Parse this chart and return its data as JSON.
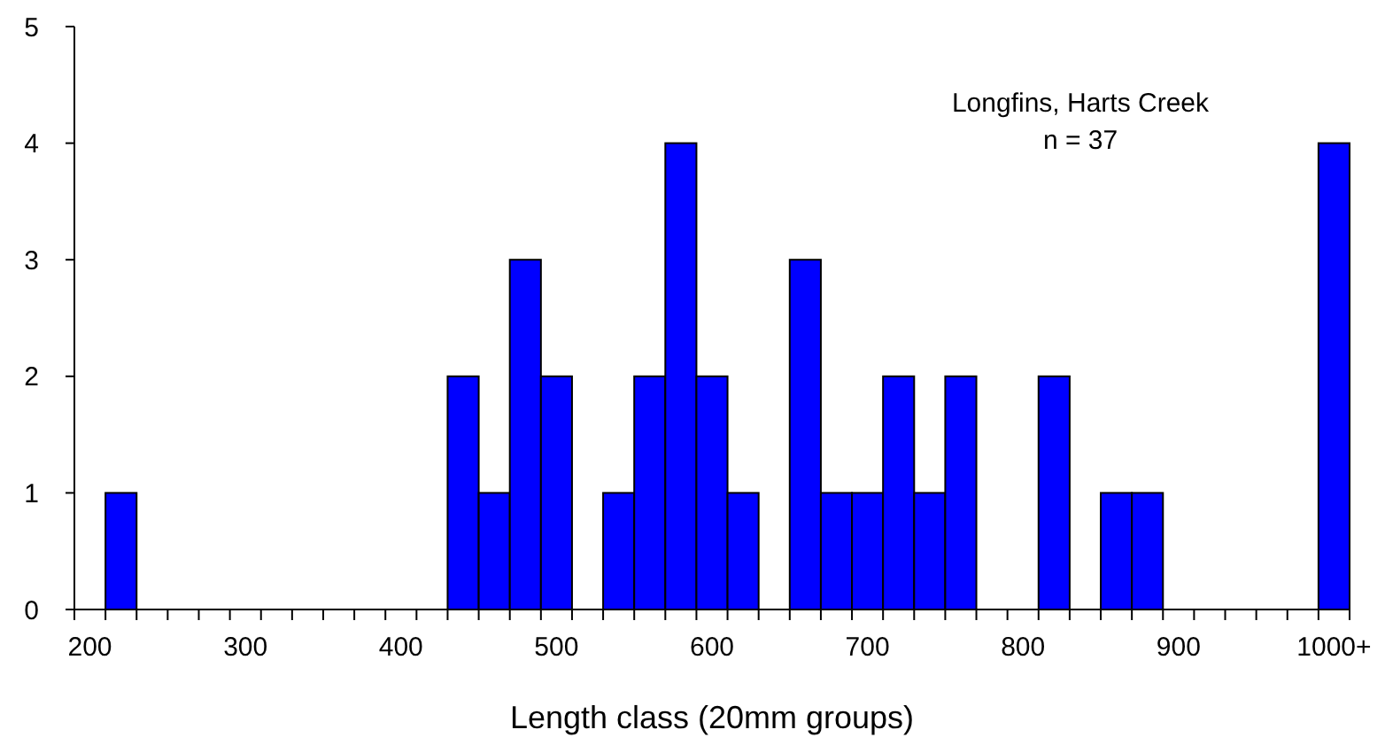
{
  "chart_data": {
    "type": "bar",
    "xlabel": "Length class (20mm groups)",
    "categories": [
      "200",
      null,
      null,
      null,
      null,
      "300",
      null,
      null,
      null,
      null,
      "400",
      null,
      null,
      null,
      null,
      "500",
      null,
      null,
      null,
      null,
      "600",
      null,
      null,
      null,
      null,
      "700",
      null,
      null,
      null,
      null,
      "800",
      null,
      null,
      null,
      null,
      "900",
      null,
      null,
      null,
      null,
      "1000+"
    ],
    "values": [
      0,
      1,
      0,
      0,
      0,
      0,
      0,
      0,
      0,
      0,
      0,
      0,
      2,
      1,
      3,
      2,
      0,
      1,
      2,
      4,
      2,
      1,
      0,
      3,
      1,
      1,
      2,
      1,
      2,
      0,
      0,
      2,
      0,
      1,
      1,
      0,
      0,
      0,
      0,
      0,
      4
    ],
    "color": "#0000ff",
    "ylim": [
      0,
      5
    ],
    "yticks": [
      0,
      1,
      2,
      3,
      4,
      5
    ],
    "grid": false,
    "annotations": [
      "Longfins, Harts Creek",
      "n = 37"
    ]
  }
}
